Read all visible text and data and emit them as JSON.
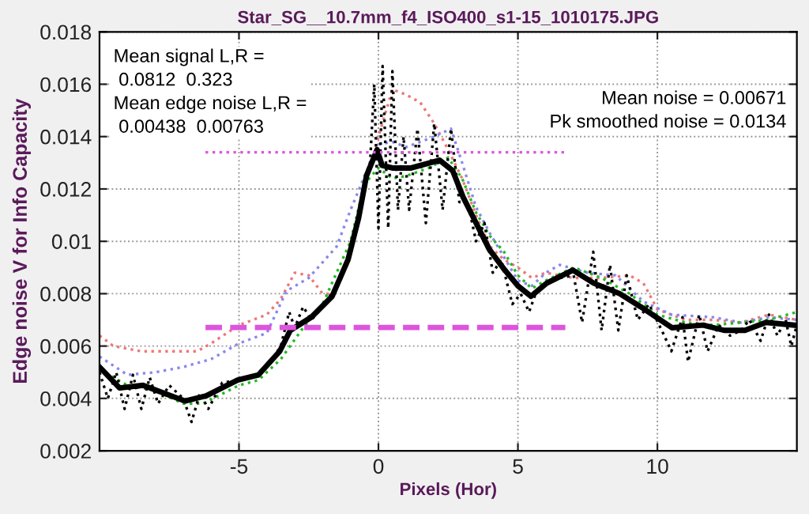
{
  "chart_data": {
    "type": "line",
    "title": "Star_SG__10.7mm_f4_ISO400_s1-15_1010175.JPG",
    "xlabel": "Pixels (Hor)",
    "ylabel": "Edge noise V for Info Capacity",
    "xlim": [
      -10,
      15
    ],
    "ylim": [
      0.002,
      0.018
    ],
    "xticks": [
      -5,
      0,
      5,
      10
    ],
    "yticks": [
      0.002,
      0.004,
      0.006,
      0.008,
      0.01,
      0.012,
      0.014,
      0.016,
      0.018
    ],
    "grid": true,
    "legend": false,
    "annotations": [
      "Mean signal L,R =\n 0.0812  0.323\nMean edge noise L,R =\n 0.00438  0.00763",
      "Mean noise = 0.00671\nPk smoothed noise = 0.0134"
    ],
    "series": [
      {
        "color": "#ee7777",
        "line_style": "dotted",
        "x": [
          -10,
          -9.5,
          -8.5,
          -7.5,
          -6.5,
          -6,
          -5,
          -4,
          -3.5,
          -3,
          -2.5,
          -2,
          -1.6,
          -1,
          -0.5,
          0,
          0.5,
          1,
          1.5,
          2,
          2.5,
          3,
          3.5,
          4,
          4.5,
          5,
          5.5,
          6,
          7,
          8,
          9,
          9.5,
          10,
          11,
          12,
          13,
          14,
          15
        ],
        "values": [
          0.0064,
          0.006,
          0.0058,
          0.0058,
          0.0058,
          0.0061,
          0.0068,
          0.0072,
          0.0078,
          0.0088,
          0.0087,
          0.008,
          0.008,
          0.0096,
          0.012,
          0.014,
          0.0158,
          0.0156,
          0.0153,
          0.0145,
          0.0135,
          0.0124,
          0.011,
          0.0098,
          0.0093,
          0.009,
          0.0086,
          0.0088,
          0.0086,
          0.0086,
          0.0087,
          0.0084,
          0.0074,
          0.007,
          0.007,
          0.0069,
          0.0072,
          0.007
        ]
      },
      {
        "color": "#8888ee",
        "line_style": "dotted",
        "x": [
          -10,
          -9,
          -8,
          -7,
          -6,
          -5,
          -4,
          -3.3,
          -2.5,
          -1.5,
          -1,
          -0.3,
          0,
          0.5,
          1,
          2,
          2.6,
          3,
          3.5,
          4,
          5,
          5.5,
          6,
          6.5,
          7.5,
          8.5,
          9.5,
          10.5,
          12,
          13,
          14,
          15
        ],
        "values": [
          0.0056,
          0.0049,
          0.005,
          0.0052,
          0.0055,
          0.0061,
          0.0065,
          0.0081,
          0.0086,
          0.0098,
          0.0112,
          0.013,
          0.0137,
          0.0138,
          0.0136,
          0.014,
          0.0143,
          0.013,
          0.0113,
          0.0103,
          0.0085,
          0.0083,
          0.0088,
          0.0091,
          0.0088,
          0.0087,
          0.0077,
          0.0072,
          0.0071,
          0.0069,
          0.0071,
          0.007
        ]
      },
      {
        "color": "#22bb22",
        "line_style": "dotted",
        "x": [
          -10,
          -9,
          -8,
          -7,
          -6.3,
          -5,
          -4.3,
          -3.5,
          -2.7,
          -2,
          -1.5,
          -1,
          -0.5,
          0,
          0.5,
          1,
          1.8,
          2.5,
          3,
          3.5,
          4,
          4.5,
          5,
          5.5,
          6,
          7,
          8,
          9,
          10,
          11,
          12,
          13,
          14,
          15
        ],
        "values": [
          0.0051,
          0.0045,
          0.0043,
          0.0038,
          0.0038,
          0.0045,
          0.0047,
          0.0055,
          0.0067,
          0.0076,
          0.0088,
          0.01,
          0.0122,
          0.0128,
          0.0124,
          0.0125,
          0.0128,
          0.0132,
          0.0124,
          0.0111,
          0.0102,
          0.0096,
          0.0087,
          0.0082,
          0.0085,
          0.009,
          0.0086,
          0.008,
          0.0072,
          0.0069,
          0.0068,
          0.0069,
          0.007,
          0.0073
        ]
      },
      {
        "color": "#000000",
        "line_style": "dotted",
        "x": [
          -10,
          -9.7,
          -9.4,
          -9.1,
          -8.8,
          -8.5,
          -8.2,
          -7.9,
          -7.5,
          -7,
          -6.7,
          -6.4,
          -6.1,
          -5.6,
          -5,
          -4.5,
          -4,
          -3.5,
          -3.2,
          -3,
          -2.7,
          -2.4,
          -2,
          -1.5,
          -1,
          -0.6,
          -0.3,
          -0.15,
          0,
          0.15,
          0.35,
          0.5,
          0.7,
          0.9,
          1.1,
          1.4,
          1.7,
          2,
          2.3,
          2.6,
          2.9,
          3.2,
          3.5,
          3.8,
          4.1,
          4.4,
          4.8,
          5.1,
          5.4,
          5.7,
          6.5,
          7,
          7.3,
          7.7,
          8,
          8.3,
          8.6,
          8.9,
          9.3,
          9.7,
          10.2,
          10.5,
          10.9,
          11.1,
          11.5,
          11.8,
          12.2,
          12.6,
          13,
          13.3,
          13.7,
          14,
          14.3,
          14.6,
          14.8,
          15
        ],
        "values": [
          0.005,
          0.004,
          0.005,
          0.0036,
          0.0049,
          0.0036,
          0.0048,
          0.0038,
          0.0045,
          0.004,
          0.0031,
          0.0042,
          0.0036,
          0.0046,
          0.0047,
          0.0048,
          0.0052,
          0.006,
          0.0073,
          0.0067,
          0.0075,
          0.007,
          0.0075,
          0.0083,
          0.0095,
          0.0115,
          0.013,
          0.016,
          0.0105,
          0.0167,
          0.0105,
          0.0165,
          0.0112,
          0.014,
          0.0112,
          0.0143,
          0.0107,
          0.0145,
          0.0112,
          0.0143,
          0.0115,
          0.0115,
          0.01,
          0.0107,
          0.0088,
          0.0093,
          0.0076,
          0.008,
          0.0073,
          0.0082,
          0.0086,
          0.0087,
          0.0069,
          0.0096,
          0.0066,
          0.0091,
          0.0066,
          0.0087,
          0.007,
          0.0076,
          0.0065,
          0.0058,
          0.0071,
          0.0054,
          0.0072,
          0.0058,
          0.0068,
          0.0064,
          0.0066,
          0.007,
          0.0062,
          0.0072,
          0.0064,
          0.007,
          0.006,
          0.0068
        ]
      },
      {
        "color": "#000000",
        "line_style": "solid",
        "x": [
          -10,
          -9.28,
          -8.44,
          -6.93,
          -6.18,
          -5.05,
          -4.3,
          -3.54,
          -3.16,
          -2.41,
          -1.66,
          -1.09,
          -0.71,
          -0.43,
          -0.05,
          0.13,
          0.5,
          1.17,
          2.19,
          2.66,
          3.03,
          3.5,
          3.97,
          4.53,
          5,
          5.47,
          6.03,
          6.97,
          7.72,
          8.65,
          9.4,
          10.52,
          11.64,
          12.39,
          13.14,
          13.89,
          14.9
        ],
        "values": [
          0.0052,
          0.0044,
          0.0045,
          0.0039,
          0.0041,
          0.0047,
          0.0049,
          0.0058,
          0.0066,
          0.0071,
          0.0079,
          0.0093,
          0.0109,
          0.0125,
          0.0135,
          0.0129,
          0.0128,
          0.0128,
          0.0131,
          0.0127,
          0.0117,
          0.0107,
          0.0097,
          0.0089,
          0.0083,
          0.0079,
          0.0084,
          0.0089,
          0.0084,
          0.008,
          0.0075,
          0.0067,
          0.0068,
          0.0066,
          0.0066,
          0.0069,
          0.0068
        ]
      },
      {
        "color": "#dd55dd",
        "line_style": "dashed",
        "x": [
          -6.2,
          6.7
        ],
        "values": [
          0.00671,
          0.00671
        ]
      },
      {
        "color": "#dd55dd",
        "line_style": "dotted",
        "x": [
          -6.2,
          6.7
        ],
        "values": [
          0.0134,
          0.0134
        ]
      }
    ]
  }
}
